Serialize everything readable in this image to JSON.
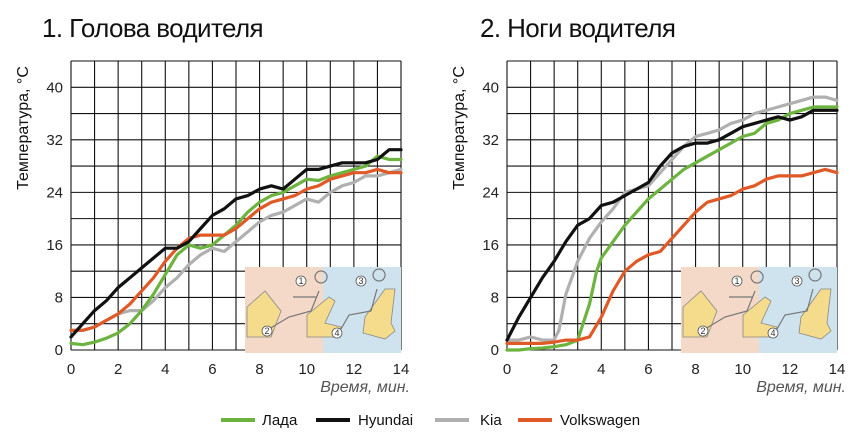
{
  "chart_data": [
    {
      "type": "line",
      "title": "1. Голова водителя",
      "ylabel": "Температура, °C",
      "xlabel": "Время, мин.",
      "xlim": [
        0,
        14
      ],
      "ylim": [
        0,
        44
      ],
      "xticks": [
        "0",
        "2",
        "4",
        "6",
        "8",
        "10",
        "12",
        "14"
      ],
      "yticks": [
        "0",
        "8",
        "16",
        "24",
        "32",
        "40"
      ],
      "grid": true,
      "series": [
        {
          "name": "Лада",
          "color": "#6cb33f",
          "x": [
            0,
            0.5,
            1,
            1.5,
            2,
            2.5,
            3,
            3.5,
            4,
            4.5,
            5,
            5.5,
            6,
            6.5,
            7,
            7.5,
            8,
            8.5,
            9,
            9.5,
            10,
            10.5,
            11,
            11.5,
            12,
            12.5,
            13,
            13.5,
            14
          ],
          "y": [
            1,
            0.8,
            1.2,
            1.8,
            2.6,
            4,
            6,
            8.5,
            11.5,
            14.5,
            16,
            15.5,
            16,
            17.5,
            19,
            21,
            22.5,
            23.5,
            24,
            25,
            26,
            25.8,
            26.5,
            27,
            27.5,
            28,
            29.5,
            29,
            29
          ]
        },
        {
          "name": "Hyundai",
          "color": "#111111",
          "x": [
            0,
            0.5,
            1,
            1.5,
            2,
            2.5,
            3,
            3.5,
            4,
            4.5,
            5,
            5.5,
            6,
            6.5,
            7,
            7.5,
            8,
            8.5,
            9,
            9.5,
            10,
            10.5,
            11,
            11.5,
            12,
            12.5,
            13,
            13.5,
            14
          ],
          "y": [
            2,
            4,
            6,
            7.5,
            9.5,
            11,
            12.5,
            14,
            15.5,
            15.5,
            16.5,
            18.5,
            20.5,
            21.5,
            23,
            23.5,
            24.5,
            25,
            24.5,
            26,
            27.5,
            27.5,
            28,
            28.5,
            28.5,
            28.5,
            29,
            30.5,
            30.5
          ]
        },
        {
          "name": "Kia",
          "color": "#b0b0b0",
          "x": [
            0,
            0.5,
            1,
            1.5,
            2,
            2.5,
            3,
            3.5,
            4,
            4.5,
            5,
            5.5,
            6,
            6.5,
            7,
            7.5,
            8,
            8.5,
            9,
            9.5,
            10,
            10.5,
            11,
            11.5,
            12,
            12.5,
            13,
            13.5,
            14
          ],
          "y": [
            3,
            3,
            3.5,
            4.5,
            5.5,
            6,
            6,
            7.5,
            9.5,
            11,
            13,
            14.5,
            15.5,
            15,
            16.5,
            18,
            19.5,
            20.5,
            21,
            22,
            23,
            22.5,
            24,
            25,
            25.5,
            26.5,
            26.5,
            27,
            27.5
          ]
        },
        {
          "name": "Volkswagen",
          "color": "#e05a28",
          "x": [
            0,
            0.5,
            1,
            1.5,
            2,
            2.5,
            3,
            3.5,
            4,
            4.5,
            5,
            5.5,
            6,
            6.5,
            7,
            7.5,
            8,
            8.5,
            9,
            9.5,
            10,
            10.5,
            11,
            11.5,
            12,
            12.5,
            13,
            13.5,
            14
          ],
          "y": [
            3,
            3,
            3.5,
            4.5,
            5.5,
            7,
            9,
            11,
            13.5,
            15.5,
            17,
            17.5,
            17.5,
            17.5,
            18.5,
            20,
            21.5,
            22.5,
            23,
            23.5,
            24.5,
            25,
            26,
            26.5,
            27,
            27,
            27.5,
            27,
            27
          ]
        }
      ]
    },
    {
      "type": "line",
      "title": "2. Ноги водителя",
      "ylabel": "Температура, °C",
      "xlabel": "Время, мин.",
      "xlim": [
        0,
        14
      ],
      "ylim": [
        0,
        44
      ],
      "xticks": [
        "0",
        "2",
        "4",
        "6",
        "8",
        "10",
        "12",
        "14"
      ],
      "yticks": [
        "0",
        "8",
        "16",
        "24",
        "32",
        "40"
      ],
      "grid": true,
      "series": [
        {
          "name": "Лада",
          "color": "#6cb33f",
          "x": [
            0,
            0.5,
            1,
            1.5,
            2,
            2.5,
            3,
            3.5,
            3.8,
            4,
            4.5,
            5,
            5.5,
            6,
            6.5,
            7,
            7.5,
            8,
            8.5,
            9,
            9.5,
            10,
            10.5,
            11,
            11.5,
            12,
            12.5,
            13,
            13.5,
            14
          ],
          "y": [
            0,
            0,
            0.2,
            0.3,
            0.5,
            0.8,
            1.5,
            7,
            12,
            14,
            16.5,
            19,
            21,
            23,
            24.5,
            26,
            27.5,
            28.5,
            29.5,
            30.5,
            31.5,
            32.5,
            33,
            34.5,
            35,
            36,
            36.5,
            37,
            37,
            37
          ]
        },
        {
          "name": "Hyundai",
          "color": "#111111",
          "x": [
            0,
            0.5,
            1,
            1.5,
            2,
            2.5,
            3,
            3.5,
            4,
            4.5,
            5,
            5.5,
            6,
            6.5,
            7,
            7.5,
            8,
            8.5,
            9,
            9.5,
            10,
            10.5,
            11,
            11.5,
            12,
            12.5,
            13,
            13.5,
            14
          ],
          "y": [
            1.5,
            5,
            8,
            11,
            13.5,
            16.5,
            19,
            20,
            22,
            22.5,
            23.5,
            24.5,
            25.5,
            28,
            30,
            31,
            31.5,
            31.5,
            32,
            33,
            34,
            34.5,
            35,
            35.5,
            35,
            35.5,
            36.5,
            36.5,
            36.5
          ]
        },
        {
          "name": "Kia",
          "color": "#b0b0b0",
          "x": [
            0,
            0.5,
            1,
            1.5,
            2,
            2.2,
            2.5,
            3,
            3.5,
            4,
            4.5,
            5,
            5.5,
            6,
            6.5,
            7,
            7.5,
            8,
            8.5,
            9,
            9.5,
            10,
            10.5,
            11,
            11.5,
            12,
            12.5,
            13,
            13.5,
            14
          ],
          "y": [
            1.5,
            1.5,
            2,
            1.5,
            1.5,
            3,
            8.5,
            13.5,
            17,
            19.5,
            21.5,
            24,
            24.5,
            25,
            27,
            29,
            31,
            32.5,
            33,
            33.5,
            34.5,
            35,
            36,
            36.5,
            37,
            37.5,
            38,
            38.5,
            38.5,
            38
          ]
        },
        {
          "name": "Volkswagen",
          "color": "#e05a28",
          "x": [
            0,
            0.5,
            1,
            1.5,
            2,
            2.5,
            3,
            3.5,
            4,
            4.5,
            5,
            5.5,
            6,
            6.5,
            7,
            7.5,
            8,
            8.5,
            9,
            9.5,
            10,
            10.5,
            11,
            11.5,
            12,
            12.5,
            13,
            13.5,
            14
          ],
          "y": [
            1,
            1,
            1,
            1,
            1.2,
            1.5,
            1.5,
            2,
            5,
            9,
            12,
            13.5,
            14.5,
            15,
            17,
            19,
            21,
            22.5,
            23,
            23.5,
            24.5,
            25,
            26,
            26.5,
            26.5,
            26.5,
            27,
            27.5,
            27
          ]
        }
      ]
    }
  ],
  "legend": [
    {
      "label": "Лада",
      "color": "#6cb33f"
    },
    {
      "label": "Hyundai",
      "color": "#111111"
    },
    {
      "label": "Kia",
      "color": "#b0b0b0"
    },
    {
      "label": "Volkswagen",
      "color": "#e05a28"
    }
  ],
  "inset": {
    "labels": [
      "1",
      "2",
      "3",
      "4"
    ]
  }
}
